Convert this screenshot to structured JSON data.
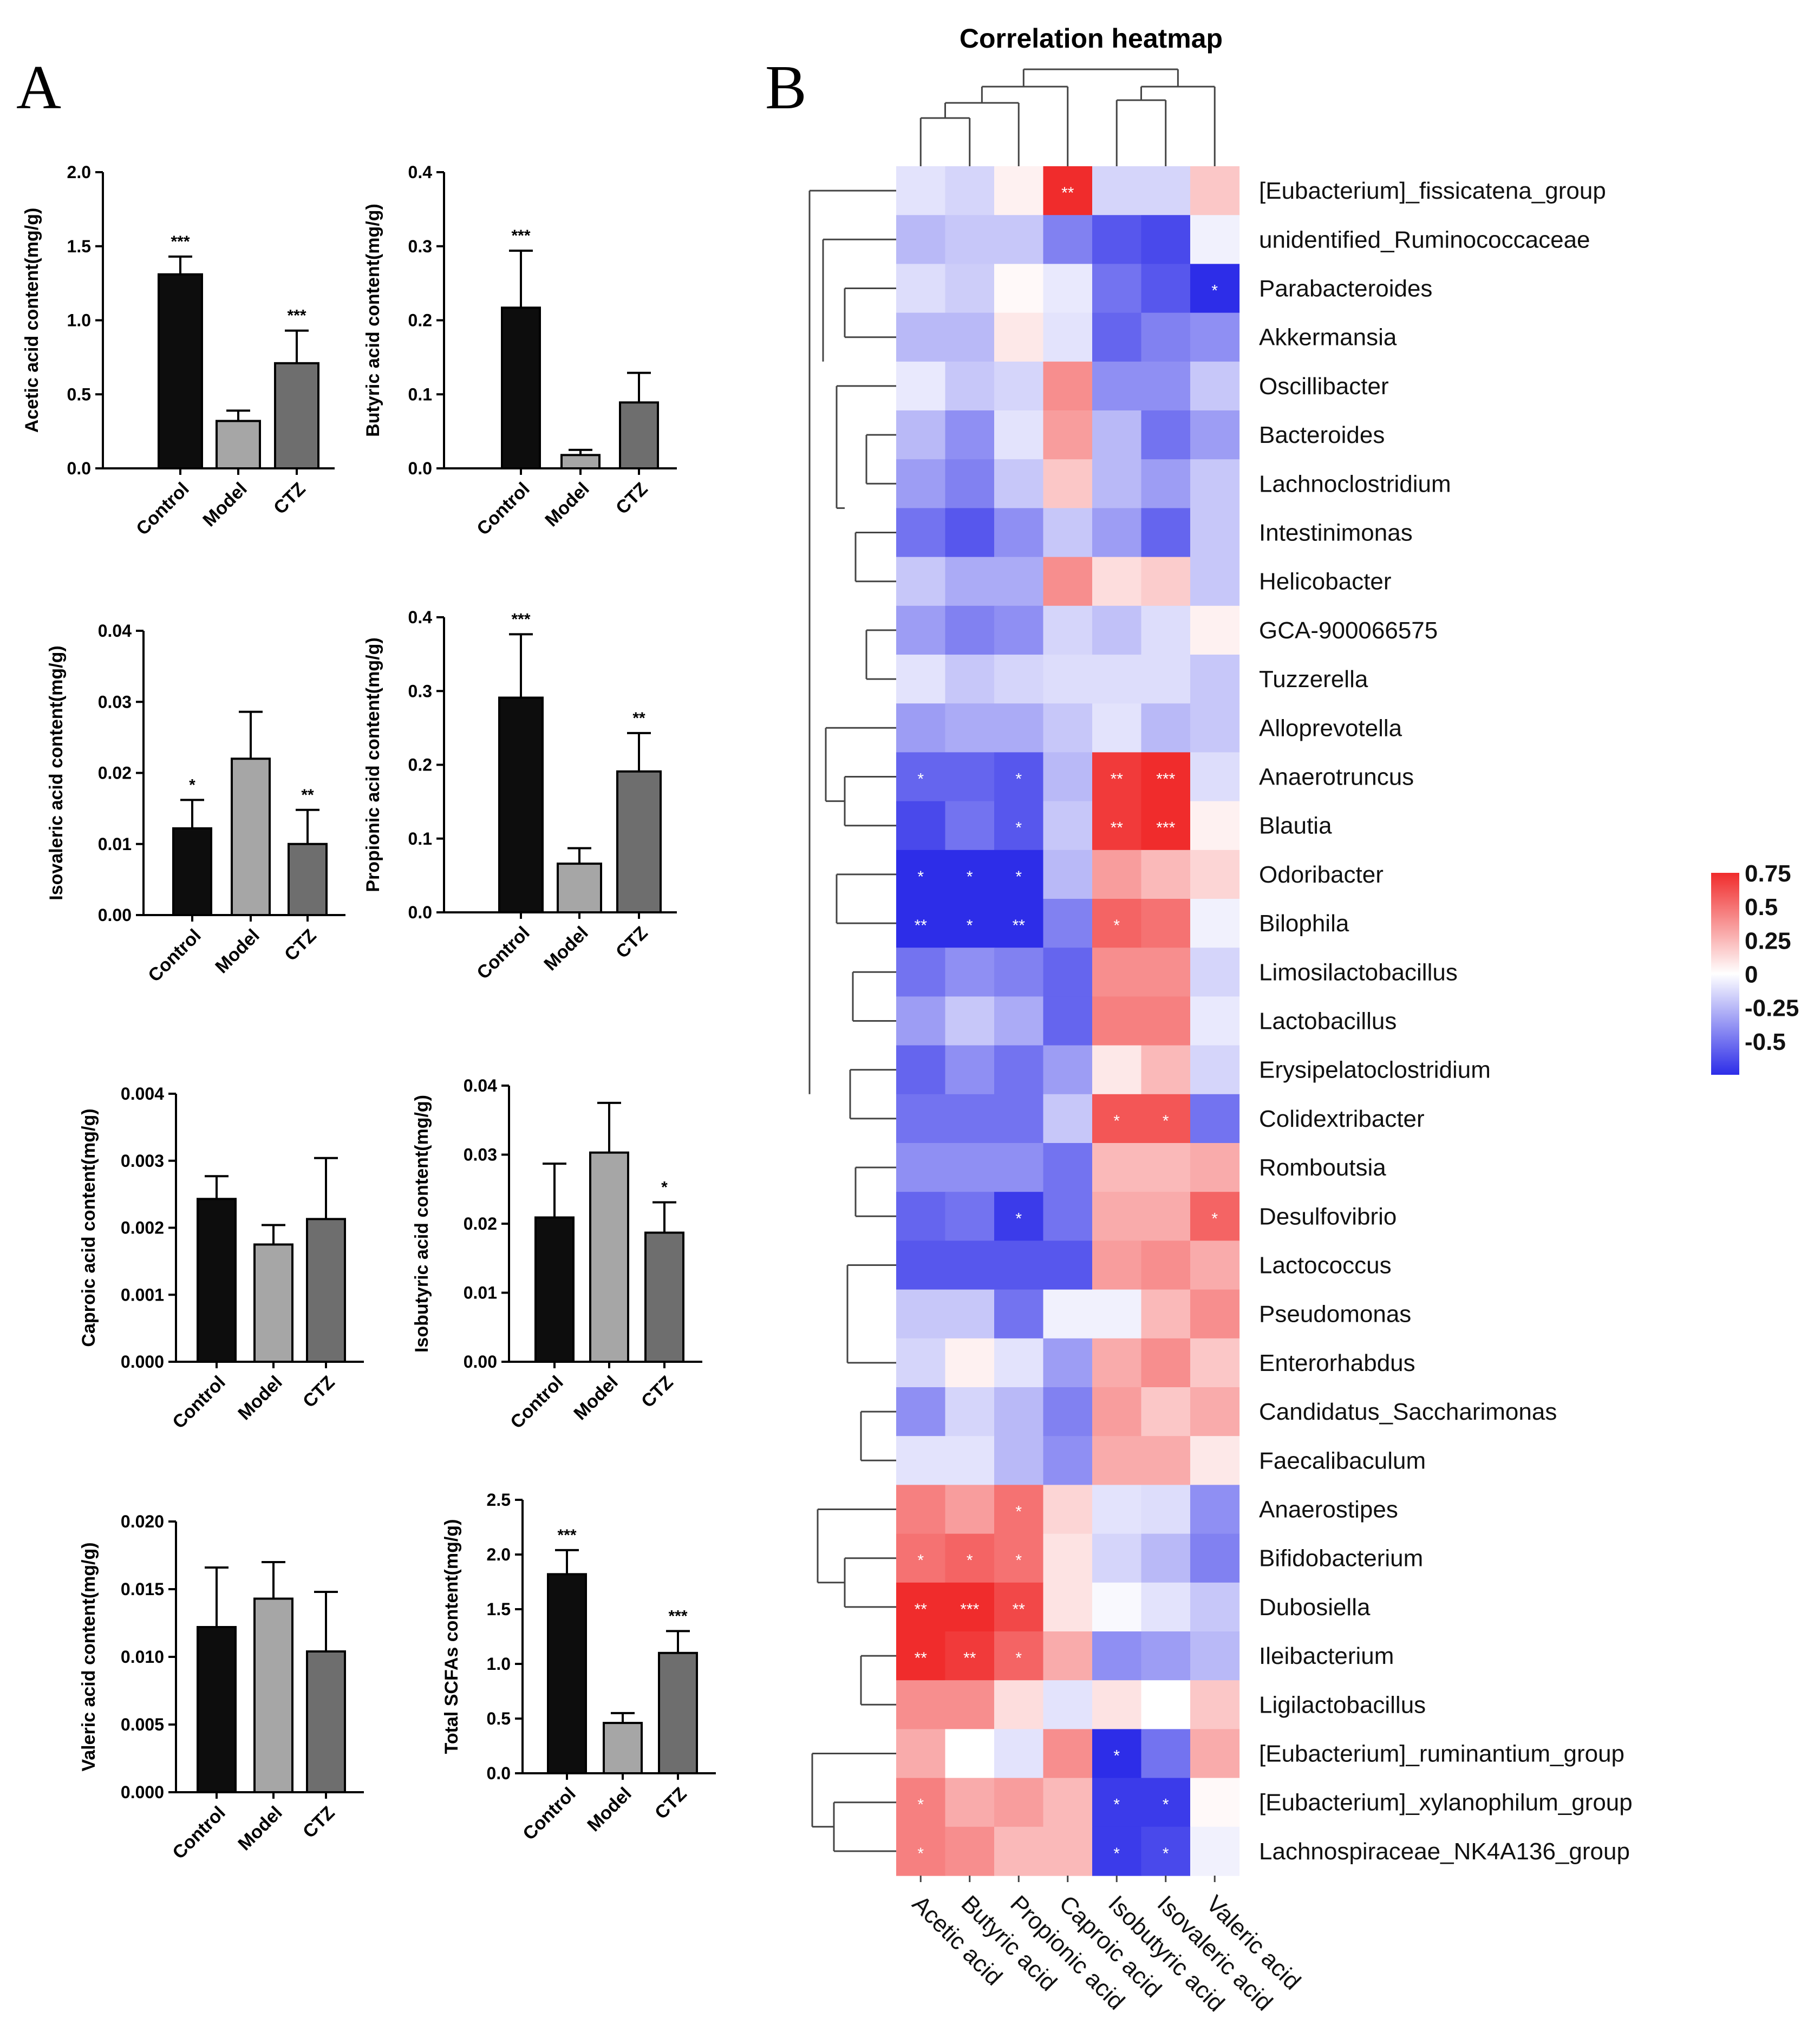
{
  "panels": {
    "a": "A",
    "b": "B"
  },
  "chart_data": [
    {
      "type": "bar",
      "title": "",
      "ylabel": "Acetic acid content(mg/g)",
      "categories": [
        "Control",
        "Model",
        "CTZ"
      ],
      "values": [
        1.31,
        0.32,
        0.71
      ],
      "errors": [
        0.12,
        0.07,
        0.22
      ],
      "significance": [
        "***",
        "",
        "***"
      ],
      "ylim": [
        0,
        2.0
      ],
      "yticks": [
        "0.0",
        "0.5",
        "1.0",
        "1.5",
        "2.0"
      ],
      "colors": [
        "#0d0d0d",
        "#a6a6a6",
        "#6e6e6e"
      ]
    },
    {
      "type": "bar",
      "title": "",
      "ylabel": "Butyric acid content(mg/g)",
      "categories": [
        "Control",
        "Model",
        "CTZ"
      ],
      "values": [
        0.217,
        0.018,
        0.089
      ],
      "errors": [
        0.077,
        0.007,
        0.04
      ],
      "significance": [
        "***",
        "",
        ""
      ],
      "ylim": [
        0,
        0.4
      ],
      "yticks": [
        "0.0",
        "0.1",
        "0.2",
        "0.3",
        "0.4"
      ],
      "colors": [
        "#0d0d0d",
        "#a6a6a6",
        "#6e6e6e"
      ]
    },
    {
      "type": "bar",
      "title": "",
      "ylabel": "Isovaleric acid content(mg/g)",
      "categories": [
        "Control",
        "Model",
        "CTZ"
      ],
      "values": [
        0.0122,
        0.022,
        0.01
      ],
      "errors": [
        0.004,
        0.0066,
        0.0048
      ],
      "significance": [
        "*",
        "",
        "**"
      ],
      "ylim": [
        0,
        0.04
      ],
      "yticks": [
        "0.00",
        "0.01",
        "0.02",
        "0.03",
        "0.04"
      ],
      "colors": [
        "#0d0d0d",
        "#a6a6a6",
        "#6e6e6e"
      ]
    },
    {
      "type": "bar",
      "title": "",
      "ylabel": "Propionic acid content(mg/g)",
      "categories": [
        "Control",
        "Model",
        "CTZ"
      ],
      "values": [
        0.291,
        0.066,
        0.191
      ],
      "errors": [
        0.086,
        0.021,
        0.052
      ],
      "significance": [
        "***",
        "",
        "**"
      ],
      "ylim": [
        0,
        0.4
      ],
      "yticks": [
        "0.0",
        "0.1",
        "0.2",
        "0.3",
        "0.4"
      ],
      "colors": [
        "#0d0d0d",
        "#a6a6a6",
        "#6e6e6e"
      ]
    },
    {
      "type": "bar",
      "title": "",
      "ylabel": "Caproic acid content(mg/g)",
      "categories": [
        "Control",
        "Model",
        "CTZ"
      ],
      "values": [
        0.00243,
        0.00175,
        0.00213
      ],
      "errors": [
        0.00034,
        0.00029,
        0.00091
      ],
      "significance": [
        "",
        "",
        ""
      ],
      "ylim": [
        0,
        0.004
      ],
      "yticks": [
        "0.000",
        "0.001",
        "0.002",
        "0.003",
        "0.004"
      ],
      "colors": [
        "#0d0d0d",
        "#a6a6a6",
        "#6e6e6e"
      ]
    },
    {
      "type": "bar",
      "title": "",
      "ylabel": "Isobutyric acid content(mg/g)",
      "categories": [
        "Control",
        "Model",
        "CTZ"
      ],
      "values": [
        0.0209,
        0.0303,
        0.0187
      ],
      "errors": [
        0.0078,
        0.0072,
        0.0044
      ],
      "significance": [
        "",
        "",
        "*"
      ],
      "ylim": [
        0,
        0.04
      ],
      "yticks": [
        "0.00",
        "0.01",
        "0.02",
        "0.03",
        "0.04"
      ],
      "colors": [
        "#0d0d0d",
        "#a6a6a6",
        "#6e6e6e"
      ]
    },
    {
      "type": "bar",
      "title": "",
      "ylabel": "Valeric acid content(mg/g)",
      "categories": [
        "Control",
        "Model",
        "CTZ"
      ],
      "values": [
        0.0122,
        0.0143,
        0.0104
      ],
      "errors": [
        0.0044,
        0.0027,
        0.0044
      ],
      "significance": [
        "",
        "",
        ""
      ],
      "ylim": [
        0,
        0.02
      ],
      "yticks": [
        "0.000",
        "0.005",
        "0.010",
        "0.015",
        "0.020"
      ],
      "colors": [
        "#0d0d0d",
        "#a6a6a6",
        "#6e6e6e"
      ]
    },
    {
      "type": "bar",
      "title": "",
      "ylabel": "Total SCFAs content(mg/g)",
      "categories": [
        "Control",
        "Model",
        "CTZ"
      ],
      "values": [
        1.82,
        0.46,
        1.1
      ],
      "errors": [
        0.22,
        0.09,
        0.2
      ],
      "significance": [
        "***",
        "",
        "***"
      ],
      "ylim": [
        0,
        2.5
      ],
      "yticks": [
        "0.0",
        "0.5",
        "1.0",
        "1.5",
        "2.0",
        "2.5"
      ],
      "colors": [
        "#0d0d0d",
        "#a6a6a6",
        "#6e6e6e"
      ]
    },
    {
      "type": "heatmap",
      "title": "Correlation heatmap",
      "columns": [
        "Acetic acid",
        "Butyric acid",
        "Propionic acid",
        "Caproic acid",
        "Isobutyric acid",
        "Isovaleric acid",
        "Valeric acid"
      ],
      "rows": [
        "[Eubacterium]_fissicatena_group",
        "unidentified_Ruminococcaceae",
        "Parabacteroides",
        "Akkermansia",
        "Oscillibacter",
        "Bacteroides",
        "Lachnoclostridium",
        "Intestinimonas",
        "Helicobacter",
        "GCA-900066575",
        "Tuzzerella",
        "Alloprevotella",
        "Anaerotruncus",
        "Blautia",
        "Odoribacter",
        "Bilophila",
        "Limosilactobacillus",
        "Lactobacillus",
        "Erysipelatoclostridium",
        "Colidextribacter",
        "Romboutsia",
        "Desulfovibrio",
        "Lactococcus",
        "Pseudomonas",
        "Enterorhabdus",
        "Candidatus_Saccharimonas",
        "Faecalibaculum",
        "Anaerostipes",
        "Bifidobacterium",
        "Dubosiella",
        "Ileibacterium",
        "Ligilactobacillus",
        "[Eubacterium]_ruminantium_group",
        "[Eubacterium]_xylanophilum_group",
        "Lachnospiraceae_NK4A136_group"
      ],
      "values": [
        [
          -0.1,
          -0.15,
          0.05,
          0.75,
          -0.15,
          -0.15,
          0.2
        ],
        [
          -0.25,
          -0.2,
          -0.2,
          -0.45,
          -0.6,
          -0.65,
          -0.05
        ],
        [
          -0.12,
          -0.18,
          0.02,
          -0.08,
          -0.5,
          -0.6,
          -0.75
        ],
        [
          -0.25,
          -0.25,
          0.08,
          -0.1,
          -0.55,
          -0.45,
          -0.4
        ],
        [
          -0.08,
          -0.2,
          -0.15,
          0.4,
          -0.4,
          -0.4,
          -0.2
        ],
        [
          -0.25,
          -0.4,
          -0.1,
          0.35,
          -0.25,
          -0.5,
          -0.35
        ],
        [
          -0.35,
          -0.45,
          -0.2,
          0.2,
          -0.25,
          -0.35,
          -0.2
        ],
        [
          -0.5,
          -0.6,
          -0.4,
          -0.2,
          -0.35,
          -0.55,
          -0.2
        ],
        [
          -0.2,
          -0.3,
          -0.3,
          0.4,
          0.12,
          0.18,
          -0.2
        ],
        [
          -0.35,
          -0.45,
          -0.4,
          -0.15,
          -0.22,
          -0.12,
          0.05
        ],
        [
          -0.1,
          -0.2,
          -0.15,
          -0.12,
          -0.12,
          -0.12,
          -0.2
        ],
        [
          -0.35,
          -0.3,
          -0.3,
          -0.2,
          -0.1,
          -0.25,
          -0.2
        ],
        [
          -0.55,
          -0.55,
          -0.6,
          -0.25,
          0.7,
          0.75,
          -0.12
        ],
        [
          -0.65,
          -0.5,
          -0.6,
          -0.2,
          0.7,
          0.75,
          0.05
        ],
        [
          -0.8,
          -0.75,
          -0.75,
          -0.25,
          0.35,
          0.25,
          0.15
        ],
        [
          -0.85,
          -0.8,
          -0.8,
          -0.45,
          0.55,
          0.5,
          -0.05
        ],
        [
          -0.5,
          -0.4,
          -0.45,
          -0.55,
          0.4,
          0.4,
          -0.15
        ],
        [
          -0.35,
          -0.2,
          -0.3,
          -0.55,
          0.45,
          0.45,
          -0.08
        ],
        [
          -0.55,
          -0.4,
          -0.5,
          -0.35,
          0.08,
          0.25,
          -0.15
        ],
        [
          -0.5,
          -0.5,
          -0.5,
          -0.2,
          0.6,
          0.6,
          -0.5
        ],
        [
          -0.4,
          -0.4,
          -0.4,
          -0.5,
          0.25,
          0.25,
          0.3
        ],
        [
          -0.55,
          -0.5,
          -0.7,
          -0.5,
          0.3,
          0.3,
          0.55
        ],
        [
          -0.6,
          -0.6,
          -0.6,
          -0.6,
          0.35,
          0.4,
          0.3
        ],
        [
          -0.2,
          -0.2,
          -0.5,
          -0.05,
          -0.05,
          0.25,
          0.4
        ],
        [
          -0.15,
          0.05,
          -0.1,
          -0.35,
          0.3,
          0.4,
          0.2
        ],
        [
          -0.4,
          -0.15,
          -0.25,
          -0.45,
          0.35,
          0.2,
          0.3
        ],
        [
          -0.1,
          -0.1,
          -0.25,
          -0.4,
          0.3,
          0.3,
          0.08
        ],
        [
          0.45,
          0.35,
          0.5,
          0.15,
          -0.1,
          -0.12,
          -0.4
        ],
        [
          0.5,
          0.55,
          0.5,
          0.1,
          -0.15,
          -0.25,
          -0.45
        ],
        [
          0.75,
          0.8,
          0.65,
          0.1,
          -0.02,
          -0.1,
          -0.2
        ],
        [
          0.75,
          0.7,
          0.55,
          0.3,
          -0.4,
          -0.35,
          -0.25
        ],
        [
          0.4,
          0.4,
          0.12,
          -0.1,
          0.1,
          0.0,
          0.2
        ],
        [
          0.3,
          0.0,
          -0.1,
          0.4,
          -0.8,
          -0.5,
          0.3
        ],
        [
          0.45,
          0.3,
          0.35,
          0.25,
          -0.7,
          -0.7,
          0.02
        ],
        [
          0.45,
          0.4,
          0.25,
          0.25,
          -0.7,
          -0.65,
          -0.05
        ]
      ],
      "stars": [
        [
          "",
          "",
          "",
          "**",
          "",
          "",
          ""
        ],
        [
          "",
          "",
          "",
          "",
          "",
          "",
          ""
        ],
        [
          "",
          "",
          "",
          "",
          "",
          "",
          "*"
        ],
        [
          "",
          "",
          "",
          "",
          "",
          "",
          ""
        ],
        [
          "",
          "",
          "",
          "",
          "",
          "",
          ""
        ],
        [
          "",
          "",
          "",
          "",
          "",
          "",
          ""
        ],
        [
          "",
          "",
          "",
          "",
          "",
          "",
          ""
        ],
        [
          "",
          "",
          "",
          "",
          "",
          "",
          ""
        ],
        [
          "",
          "",
          "",
          "",
          "",
          "",
          ""
        ],
        [
          "",
          "",
          "",
          "",
          "",
          "",
          ""
        ],
        [
          "",
          "",
          "",
          "",
          "",
          "",
          ""
        ],
        [
          "",
          "",
          "",
          "",
          "",
          "",
          ""
        ],
        [
          "*",
          "",
          "*",
          "",
          "**",
          "***",
          ""
        ],
        [
          "",
          "",
          "*",
          "",
          "**",
          "***",
          ""
        ],
        [
          "*",
          "*",
          "*",
          "",
          "",
          "",
          ""
        ],
        [
          "**",
          "*",
          "**",
          "",
          "*",
          "",
          ""
        ],
        [
          "",
          "",
          "",
          "",
          "",
          "",
          ""
        ],
        [
          "",
          "",
          "",
          "",
          "",
          "",
          ""
        ],
        [
          "",
          "",
          "",
          "",
          "",
          "",
          ""
        ],
        [
          "",
          "",
          "",
          "",
          "*",
          "*",
          ""
        ],
        [
          "",
          "",
          "",
          "",
          "",
          "",
          ""
        ],
        [
          "",
          "",
          "*",
          "",
          "",
          "",
          "*"
        ],
        [
          "",
          "",
          "",
          "",
          "",
          "",
          ""
        ],
        [
          "",
          "",
          "",
          "",
          "",
          "",
          ""
        ],
        [
          "",
          "",
          "",
          "",
          "",
          "",
          ""
        ],
        [
          "",
          "",
          "",
          "",
          "",
          "",
          ""
        ],
        [
          "",
          "",
          "",
          "",
          "",
          "",
          ""
        ],
        [
          "",
          "",
          "*",
          "",
          "",
          "",
          ""
        ],
        [
          "*",
          "*",
          "*",
          "",
          "",
          "",
          ""
        ],
        [
          "**",
          "***",
          "**",
          "",
          "",
          "",
          ""
        ],
        [
          "**",
          "**",
          "*",
          "",
          "",
          "",
          ""
        ],
        [
          "",
          "",
          "",
          "",
          "",
          "",
          ""
        ],
        [
          "",
          "",
          "",
          "",
          "*",
          "",
          ""
        ],
        [
          "*",
          "",
          "",
          "",
          "*",
          "*",
          ""
        ],
        [
          "*",
          "",
          "",
          "",
          "*",
          "*",
          ""
        ]
      ],
      "legend": {
        "ticks": [
          "0.75",
          "0.5",
          "0.25",
          "0",
          "-0.25",
          "-0.5"
        ],
        "range": [
          -0.75,
          0.75
        ],
        "low_color": "#2d2de8",
        "mid_color": "#ffffff",
        "high_color": "#f02c2c"
      }
    }
  ]
}
